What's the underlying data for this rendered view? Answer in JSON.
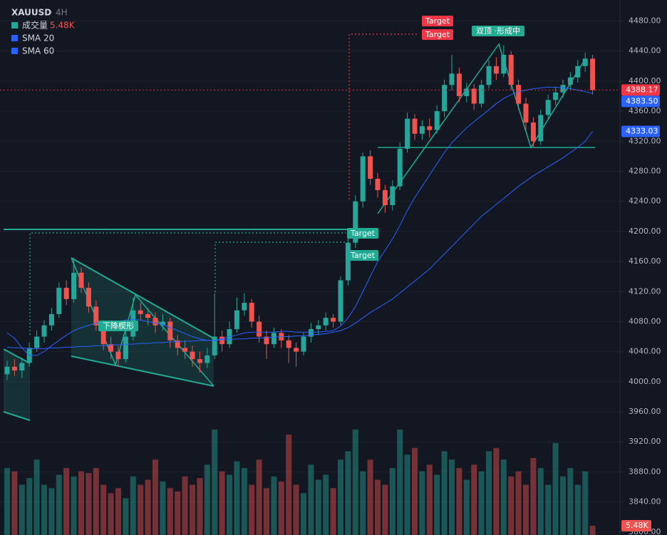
{
  "chart_data": {
    "type": "candlestick",
    "symbol": "XAUUSD",
    "interval": "4H",
    "legend": {
      "volume": "成交量",
      "volume_value": "5.48K",
      "sma20": "SMA 20",
      "sma60": "SMA 60"
    },
    "up_color": "#26a69a",
    "down_color": "#ef5350",
    "sma20_color": "#2962ff",
    "sma60_color": "#2962ff",
    "ylim": [
      3796,
      4508
    ],
    "yticks": [
      {
        "value": 3800,
        "label": "3800.00"
      },
      {
        "value": 3840,
        "label": "3840.00"
      },
      {
        "value": 3880,
        "label": "3880.00"
      },
      {
        "value": 3920,
        "label": "3920.00"
      },
      {
        "value": 3960,
        "label": "3960.00"
      },
      {
        "value": 4000,
        "label": "4000.00"
      },
      {
        "value": 4040,
        "label": "4040.00"
      },
      {
        "value": 4080,
        "label": "4080.00"
      },
      {
        "value": 4120,
        "label": "4120.00"
      },
      {
        "value": 4160,
        "label": "4160.00"
      },
      {
        "value": 4200,
        "label": "4200.00"
      },
      {
        "value": 4240,
        "label": "4240.00"
      },
      {
        "value": 4280,
        "label": "4280.00"
      },
      {
        "value": 4320,
        "label": "4320.00"
      },
      {
        "value": 4360,
        "label": "4360.00"
      },
      {
        "value": 4400,
        "label": "4400.00"
      },
      {
        "value": 4440,
        "label": "4440.00"
      },
      {
        "value": 4480,
        "label": "4480.00"
      }
    ],
    "grid": true,
    "candles": [
      [
        4010,
        4028,
        4002,
        4020
      ],
      [
        4020,
        4030,
        4008,
        4015
      ],
      [
        4015,
        4032,
        4005,
        4025
      ],
      [
        4025,
        4052,
        4020,
        4045
      ],
      [
        4045,
        4068,
        4040,
        4060
      ],
      [
        4060,
        4082,
        4052,
        4075
      ],
      [
        4075,
        4098,
        4068,
        4090
      ],
      [
        4090,
        4132,
        4085,
        4125
      ],
      [
        4125,
        4135,
        4102,
        4110
      ],
      [
        4110,
        4165,
        4105,
        4145
      ],
      [
        4145,
        4152,
        4118,
        4125
      ],
      [
        4125,
        4132,
        4092,
        4100
      ],
      [
        4100,
        4108,
        4068,
        4075
      ],
      [
        4075,
        4082,
        4042,
        4050
      ],
      [
        4050,
        4060,
        4030,
        4040
      ],
      [
        4040,
        4048,
        4020,
        4030
      ],
      [
        4030,
        4068,
        4025,
        4060
      ],
      [
        4060,
        4112,
        4055,
        4095
      ],
      [
        4095,
        4105,
        4082,
        4090
      ],
      [
        4090,
        4098,
        4075,
        4085
      ],
      [
        4085,
        4092,
        4065,
        4075
      ],
      [
        4075,
        4090,
        4068,
        4080
      ],
      [
        4080,
        4085,
        4045,
        4055
      ],
      [
        4055,
        4062,
        4035,
        4045
      ],
      [
        4045,
        4055,
        4030,
        4040
      ],
      [
        4040,
        4048,
        4020,
        4030
      ],
      [
        4030,
        4040,
        4012,
        4025
      ],
      [
        4025,
        4045,
        4018,
        4035
      ],
      [
        4035,
        4118,
        4030,
        4060
      ],
      [
        4060,
        4068,
        4040,
        4050
      ],
      [
        4050,
        4080,
        4045,
        4070
      ],
      [
        4070,
        4112,
        4065,
        4095
      ],
      [
        4095,
        4118,
        4088,
        4105
      ],
      [
        4105,
        4110,
        4072,
        4080
      ],
      [
        4080,
        4088,
        4052,
        4060
      ],
      [
        4060,
        4068,
        4030,
        4050
      ],
      [
        4050,
        4072,
        4045,
        4065
      ],
      [
        4065,
        4070,
        4045,
        4055
      ],
      [
        4055,
        4062,
        4025,
        4045
      ],
      [
        4045,
        4052,
        4020,
        4040
      ],
      [
        4040,
        4065,
        4035,
        4060
      ],
      [
        4060,
        4078,
        4052,
        4070
      ],
      [
        4070,
        4082,
        4062,
        4075
      ],
      [
        4075,
        4092,
        4068,
        4085
      ],
      [
        4085,
        4090,
        4072,
        4080
      ],
      [
        4080,
        4140,
        4075,
        4135
      ],
      [
        4135,
        4192,
        4128,
        4185
      ],
      [
        4185,
        4248,
        4178,
        4240
      ],
      [
        4240,
        4305,
        4232,
        4300
      ],
      [
        4300,
        4308,
        4262,
        4270
      ],
      [
        4270,
        4278,
        4245,
        4255
      ],
      [
        4255,
        4262,
        4225,
        4235
      ],
      [
        4235,
        4268,
        4228,
        4260
      ],
      [
        4260,
        4318,
        4255,
        4310
      ],
      [
        4310,
        4358,
        4305,
        4350
      ],
      [
        4350,
        4356,
        4322,
        4330
      ],
      [
        4330,
        4348,
        4322,
        4340
      ],
      [
        4340,
        4350,
        4325,
        4335
      ],
      [
        4335,
        4368,
        4330,
        4360
      ],
      [
        4360,
        4402,
        4352,
        4395
      ],
      [
        4395,
        4435,
        4388,
        4410
      ],
      [
        4410,
        4418,
        4372,
        4380
      ],
      [
        4380,
        4398,
        4372,
        4390
      ],
      [
        4390,
        4396,
        4362,
        4370
      ],
      [
        4370,
        4402,
        4365,
        4395
      ],
      [
        4395,
        4428,
        4390,
        4420
      ],
      [
        4420,
        4432,
        4402,
        4410
      ],
      [
        4410,
        4448,
        4405,
        4435
      ],
      [
        4435,
        4440,
        4388,
        4395
      ],
      [
        4395,
        4402,
        4362,
        4370
      ],
      [
        4370,
        4378,
        4335,
        4345
      ],
      [
        4345,
        4352,
        4312,
        4320
      ],
      [
        4320,
        4362,
        4315,
        4355
      ],
      [
        4355,
        4382,
        4348,
        4375
      ],
      [
        4375,
        4392,
        4368,
        4385
      ],
      [
        4385,
        4402,
        4378,
        4395
      ],
      [
        4395,
        4412,
        4388,
        4405
      ],
      [
        4405,
        4428,
        4398,
        4420
      ],
      [
        4420,
        4438,
        4412,
        4430
      ],
      [
        4430,
        4435,
        4382,
        4388.17
      ]
    ],
    "volume": [
      40,
      38,
      30,
      34,
      45,
      30,
      28,
      36,
      40,
      35,
      38,
      37,
      40,
      30,
      25,
      28,
      22,
      35,
      30,
      33,
      45,
      32,
      28,
      26,
      35,
      30,
      34,
      42,
      63,
      38,
      36,
      44,
      40,
      30,
      45,
      28,
      35,
      32,
      60,
      30,
      25,
      42,
      33,
      36,
      28,
      45,
      50,
      63,
      38,
      45,
      33,
      30,
      40,
      63,
      48,
      52,
      38,
      42,
      36,
      50,
      45,
      40,
      33,
      42,
      38,
      50,
      52,
      45,
      35,
      38,
      30,
      46,
      40,
      30,
      55,
      35,
      40,
      30,
      38,
      5.48
    ],
    "sma20": [
      4065,
      4058,
      4045,
      4035,
      4035,
      4040,
      4048,
      4055,
      4062,
      4068,
      4072,
      4075,
      4078,
      4079,
      4080,
      4080,
      4082,
      4083,
      4082,
      4080,
      4078,
      4076,
      4072,
      4068,
      4064,
      4060,
      4057,
      4055,
      4055,
      4057,
      4060,
      4062,
      4065,
      4066,
      4066,
      4066,
      4066,
      4067,
      4067,
      4066,
      4066,
      4066,
      4066,
      4067,
      4068,
      4074,
      4085,
      4100,
      4120,
      4140,
      4160,
      4175,
      4190,
      4208,
      4228,
      4245,
      4260,
      4275,
      4290,
      4305,
      4318,
      4328,
      4338,
      4346,
      4354,
      4362,
      4370,
      4377,
      4382,
      4386,
      4388,
      4390,
      4391,
      4392,
      4392,
      4391,
      4390,
      4388,
      4386,
      4383.5
    ],
    "sma60": [
      4046,
      4045,
      4045,
      4044,
      4044,
      4044,
      4045,
      4045,
      4046,
      4046,
      4047,
      4047,
      4048,
      4048,
      4049,
      4049,
      4050,
      4050,
      4051,
      4051,
      4052,
      4052,
      4053,
      4053,
      4054,
      4054,
      4055,
      4055,
      4055,
      4056,
      4056,
      4057,
      4057,
      4058,
      4058,
      4059,
      4059,
      4060,
      4060,
      4061,
      4061,
      4062,
      4063,
      4064,
      4066,
      4068,
      4072,
      4078,
      4085,
      4092,
      4098,
      4104,
      4110,
      4118,
      4126,
      4134,
      4142,
      4150,
      4160,
      4170,
      4180,
      4190,
      4200,
      4210,
      4220,
      4228,
      4236,
      4244,
      4252,
      4260,
      4267,
      4274,
      4280,
      4286,
      4292,
      4298,
      4305,
      4312,
      4320,
      4333.03
    ],
    "price_tags": [
      {
        "value": 4388.17,
        "label": "4388.17",
        "color": "#f23645"
      },
      {
        "value": 4383.5,
        "label": "4383.50",
        "color": "#2962ff"
      },
      {
        "value": 4333.03,
        "label": "4333.03",
        "color": "#2962ff"
      }
    ],
    "annotations": [
      {
        "text": "Target",
        "color": "#f23645"
      },
      {
        "text": "Target",
        "color": "#f23645"
      },
      {
        "text": "Target",
        "color": "#22ab94"
      },
      {
        "text": "Target",
        "color": "#22ab94"
      },
      {
        "text": "下降楔形",
        "color": "#22ab94"
      },
      {
        "text": "双顶 ·形成中",
        "color": "#22ab94"
      }
    ]
  }
}
